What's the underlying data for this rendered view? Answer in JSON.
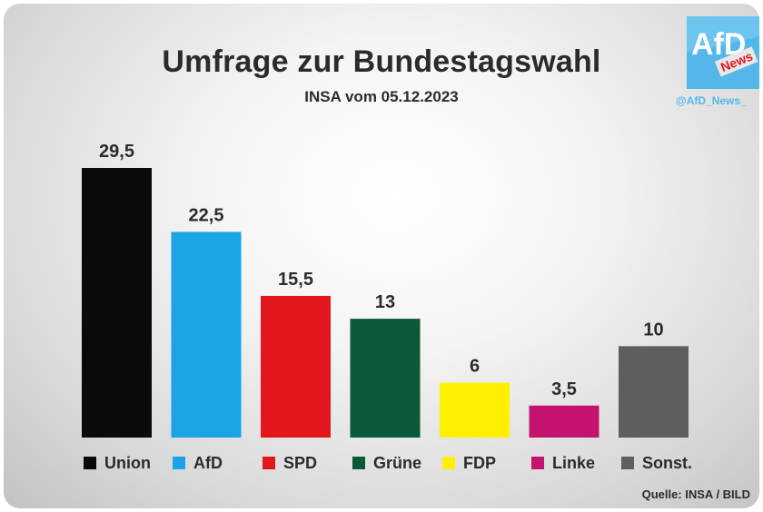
{
  "header": {
    "title": "Umfrage zur Bundestagswahl",
    "subtitle": "INSA vom 05.12.2023"
  },
  "logo": {
    "text": "AfD",
    "badge": "News",
    "handle": "@AfD_News_",
    "color": "#55b7e9"
  },
  "source": "Quelle: INSA / BILD",
  "chart_data": {
    "type": "bar",
    "title": "Umfrage zur Bundestagswahl",
    "subtitle": "INSA vom 05.12.2023",
    "xlabel": "",
    "ylabel": "",
    "ylim": [
      0,
      29.5
    ],
    "grid": false,
    "legend_position": "bottom",
    "categories": [
      "Union",
      "AfD",
      "SPD",
      "Grüne",
      "FDP",
      "Linke",
      "Sonst."
    ],
    "values": [
      29.5,
      22.5,
      15.5,
      13,
      6,
      3.5,
      10
    ],
    "value_labels": [
      "29,5",
      "22,5",
      "15,5",
      "13",
      "6",
      "3,5",
      "10"
    ],
    "colors": [
      "#0a0a0a",
      "#1aa3e6",
      "#e3161b",
      "#0a5a3a",
      "#fff000",
      "#c4126e",
      "#5e5e5e"
    ]
  }
}
